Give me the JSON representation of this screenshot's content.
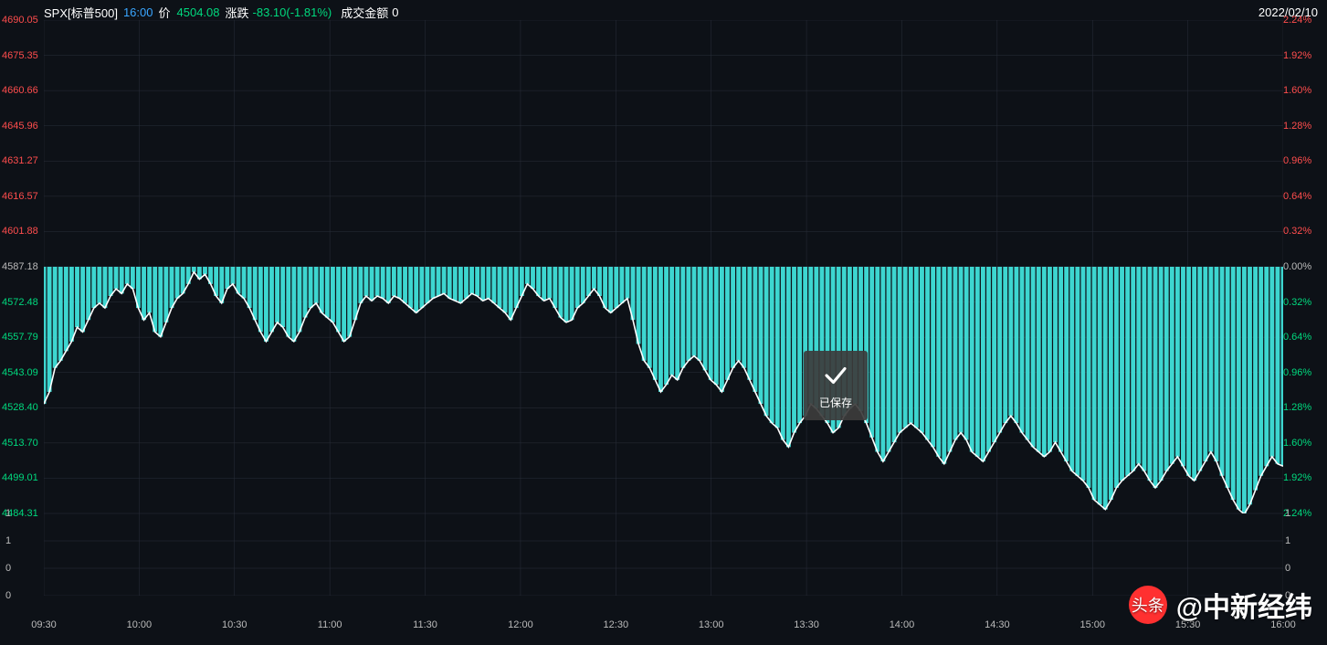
{
  "header": {
    "symbol": "SPX[标普500]",
    "time": "16:00",
    "price_label": "价",
    "price": "4504.08",
    "change_label": "涨跌",
    "change": "-83.10(-1.81%)",
    "volume_label": "成交金额",
    "volume": "0",
    "date": "2022/02/10"
  },
  "colors": {
    "bg": "#0d1117",
    "line": "#ffffff",
    "grid": "#2a2f3a",
    "bar_up": "#ff4d4d",
    "bar_dn": "#3dd6d0",
    "text_up": "#ff4d4d",
    "text_dn": "#00d97e",
    "text_neutral": "#bbbbbb"
  },
  "chart": {
    "type": "line+baseline-bars",
    "y_min": 4484.31,
    "y_max": 4690.05,
    "baseline": 4587.18,
    "left_ticks": [
      4690.05,
      4675.35,
      4660.66,
      4645.96,
      4631.27,
      4616.57,
      4601.88,
      4587.18,
      4572.48,
      4557.79,
      4543.09,
      4528.4,
      4513.7,
      4499.01,
      4484.31
    ],
    "right_ticks_pct": [
      "2.24%",
      "1.92%",
      "1.60%",
      "1.28%",
      "0.96%",
      "0.64%",
      "0.32%",
      "0.00%",
      "0.32%",
      "0.64%",
      "0.96%",
      "1.28%",
      "1.60%",
      "1.92%",
      "2.24%"
    ],
    "right_tick_colors": [
      "pos",
      "pos",
      "pos",
      "pos",
      "pos",
      "pos",
      "pos",
      "neu",
      "neg",
      "neg",
      "neg",
      "neg",
      "neg",
      "neg",
      "neg"
    ],
    "x_ticks": [
      "09:30",
      "10:00",
      "10:30",
      "11:00",
      "11:30",
      "12:00",
      "12:30",
      "13:00",
      "13:30",
      "14:00",
      "14:30",
      "15:00",
      "15:30",
      "16:00"
    ],
    "series": [
      4530,
      4535,
      4545,
      4548,
      4552,
      4556,
      4562,
      4560,
      4565,
      4570,
      4572,
      4570,
      4575,
      4578,
      4576,
      4580,
      4578,
      4570,
      4565,
      4568,
      4560,
      4558,
      4564,
      4570,
      4574,
      4576,
      4580,
      4585,
      4582,
      4584,
      4580,
      4575,
      4572,
      4578,
      4580,
      4576,
      4574,
      4570,
      4565,
      4560,
      4556,
      4560,
      4564,
      4562,
      4558,
      4556,
      4560,
      4566,
      4570,
      4572,
      4568,
      4566,
      4564,
      4560,
      4556,
      4558,
      4565,
      4572,
      4575,
      4573,
      4575,
      4574,
      4572,
      4575,
      4574,
      4572,
      4570,
      4568,
      4570,
      4572,
      4574,
      4575,
      4576,
      4574,
      4573,
      4572,
      4574,
      4576,
      4575,
      4573,
      4574,
      4572,
      4570,
      4568,
      4565,
      4570,
      4575,
      4580,
      4578,
      4575,
      4573,
      4574,
      4570,
      4566,
      4564,
      4565,
      4570,
      4572,
      4575,
      4578,
      4575,
      4570,
      4568,
      4570,
      4572,
      4574,
      4565,
      4555,
      4548,
      4545,
      4540,
      4535,
      4538,
      4542,
      4540,
      4545,
      4548,
      4550,
      4548,
      4544,
      4540,
      4538,
      4535,
      4540,
      4545,
      4548,
      4545,
      4540,
      4535,
      4530,
      4525,
      4522,
      4520,
      4515,
      4512,
      4518,
      4522,
      4525,
      4530,
      4528,
      4525,
      4522,
      4518,
      4520,
      4525,
      4528,
      4530,
      4527,
      4522,
      4516,
      4510,
      4506,
      4510,
      4514,
      4518,
      4520,
      4522,
      4520,
      4518,
      4515,
      4512,
      4508,
      4505,
      4510,
      4515,
      4518,
      4515,
      4510,
      4508,
      4506,
      4510,
      4514,
      4518,
      4522,
      4525,
      4522,
      4518,
      4515,
      4512,
      4510,
      4508,
      4510,
      4514,
      4510,
      4506,
      4502,
      4500,
      4498,
      4495,
      4490,
      4488,
      4486,
      4490,
      4495,
      4498,
      4500,
      4502,
      4505,
      4502,
      4498,
      4495,
      4498,
      4502,
      4505,
      4508,
      4504,
      4500,
      4498,
      4502,
      4506,
      4510,
      4506,
      4500,
      4495,
      4490,
      4486,
      4484,
      4488,
      4494,
      4500,
      4504,
      4508,
      4505,
      4504
    ],
    "line_width": 1.6
  },
  "volume_axis": {
    "left_ticks": [
      1,
      1,
      0,
      0
    ],
    "right_ticks": [
      1,
      1,
      0,
      0
    ]
  },
  "toast": {
    "text": "已保存"
  },
  "watermark": {
    "logo_text": "头条",
    "text": "@中新经纬"
  }
}
